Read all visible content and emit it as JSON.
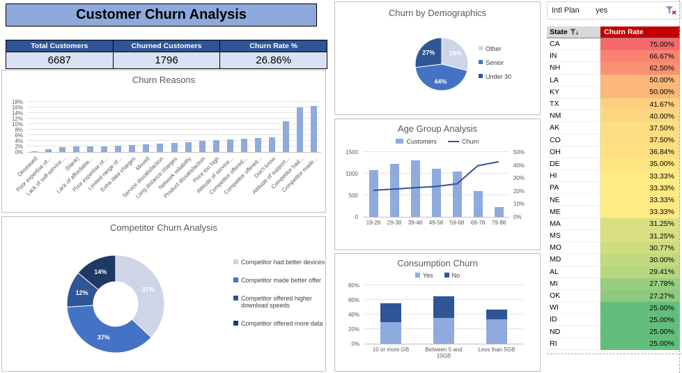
{
  "title": "Customer Churn Analysis",
  "kpis": [
    {
      "label": "Total Customers",
      "value": "6687"
    },
    {
      "label": "Churned Customers",
      "value": "1796"
    },
    {
      "label": "Churn Rate %",
      "value": "26.86%"
    }
  ],
  "slicer": {
    "label": "Intl Plan",
    "value": "yes",
    "clear_filter_icon": "funnel-x-icon"
  },
  "theme": {
    "title_bg": "#8EA9DB",
    "kpi_header_bg": "#2F5597",
    "kpi_value_bg": "#D9E1F2",
    "rate_header_bg": "#C00000",
    "rate_header_fg": "#FFFFFF"
  },
  "chart_data": [
    {
      "id": "churn_reasons",
      "type": "bar",
      "title": "Churn Reasons",
      "categories": [
        "Deceased",
        "Poor expertise of...",
        "Lack of self-service...",
        "(blank)",
        "Lack of affordable...",
        "Poor expertise of...",
        "Limited range of...",
        "Extra data charges",
        "Moved",
        "Service dissatisfaction",
        "Long distance charges",
        "Network reliability",
        "Product dissatisfaction",
        "Price too high",
        "Attitude of service...",
        "Competitor offered...",
        "Competitor offered...",
        "Don't know",
        "Attitude of support...",
        "Competitor had...",
        "Competitor made..."
      ],
      "values": [
        0.3,
        1.0,
        1.8,
        1.9,
        2.0,
        2.0,
        2.2,
        2.4,
        2.7,
        3.0,
        3.3,
        3.6,
        3.9,
        4.2,
        4.5,
        4.7,
        5.0,
        5.3,
        11.0,
        16.0,
        16.4
      ],
      "ylim": [
        0,
        18
      ],
      "yticks": [
        "0%",
        "2%",
        "4%",
        "6%",
        "8%",
        "10%",
        "12%",
        "14%",
        "16%",
        "18%"
      ],
      "bar_color": "#8FAADC",
      "grid": true,
      "legend_position": "none"
    },
    {
      "id": "competitor",
      "type": "pie",
      "donut": true,
      "title": "Competitor Churn Analysis",
      "labels": [
        "Competitor had better devices",
        "Competitor made better offer",
        "Competitor offered higher download speeds",
        "Competitor offered more data"
      ],
      "values": [
        37,
        37,
        12,
        14
      ],
      "value_labels": [
        "37%",
        "37%",
        "12%",
        "14%"
      ],
      "colors": [
        "#CDD5E7",
        "#4472C4",
        "#2F5597",
        "#1F3864"
      ],
      "legend_position": "right"
    },
    {
      "id": "demographics",
      "type": "pie",
      "donut": false,
      "title": "Churn by Demographics",
      "labels": [
        "Other",
        "Senior",
        "Under 30"
      ],
      "values": [
        29,
        44,
        27
      ],
      "value_labels": [
        "29%",
        "44%",
        "27%"
      ],
      "colors": [
        "#CDD5E7",
        "#4472C4",
        "#2F5597"
      ],
      "legend_position": "right"
    },
    {
      "id": "age_group",
      "type": "combo",
      "title": "Age Group Analysis",
      "categories": [
        "19-28",
        "29-38",
        "39-48",
        "49-58",
        "59-68",
        "69-78",
        "79-88"
      ],
      "series": [
        {
          "name": "Customers",
          "type": "bar",
          "axis": "left",
          "values": [
            1080,
            1230,
            1310,
            1120,
            1050,
            600,
            230
          ],
          "color": "#8FAADC"
        },
        {
          "name": "Churn",
          "type": "line",
          "axis": "right",
          "values": [
            21,
            22,
            23,
            24,
            26,
            40,
            43
          ],
          "color": "#2F5597"
        }
      ],
      "left_ylim": [
        0,
        1500
      ],
      "left_yticks": [
        "0",
        "500",
        "1000",
        "1500"
      ],
      "right_ylim": [
        0,
        50
      ],
      "right_yticks": [
        "0%",
        "10%",
        "20%",
        "30%",
        "40%",
        "50%"
      ],
      "grid": true,
      "legend_position": "top"
    },
    {
      "id": "consumption",
      "type": "bar",
      "stacked": true,
      "title": "Consumption Churn",
      "categories": [
        "10 or more GB",
        "Between 5 and 10GB",
        "Less than 5GB"
      ],
      "series": [
        {
          "name": "Yes",
          "values": [
            30,
            35,
            33
          ],
          "color": "#8FAADC"
        },
        {
          "name": "No",
          "values": [
            25,
            30,
            14
          ],
          "color": "#2F5597"
        }
      ],
      "ylim": [
        0,
        80
      ],
      "yticks": [
        "0%",
        "20%",
        "40%",
        "60%",
        "80%"
      ],
      "grid": true,
      "legend_position": "top"
    }
  ],
  "state_table": {
    "columns": [
      "State",
      "Churn Rate"
    ],
    "filter_icon": "funnel-sort-icon",
    "rows": [
      {
        "state": "CA",
        "rate": "75.00%",
        "color": "#F8696B"
      },
      {
        "state": "IN",
        "rate": "66.67%",
        "color": "#F98370"
      },
      {
        "state": "NH",
        "rate": "62.50%",
        "color": "#FA9072"
      },
      {
        "state": "LA",
        "rate": "50.00%",
        "color": "#FCB77A"
      },
      {
        "state": "KY",
        "rate": "50.00%",
        "color": "#FCB77A"
      },
      {
        "state": "TX",
        "rate": "41.67%",
        "color": "#FED17F"
      },
      {
        "state": "NM",
        "rate": "40.00%",
        "color": "#FED680"
      },
      {
        "state": "AK",
        "rate": "37.50%",
        "color": "#FEDE82"
      },
      {
        "state": "CO",
        "rate": "37.50%",
        "color": "#FEDE82"
      },
      {
        "state": "OH",
        "rate": "36.84%",
        "color": "#FEE082"
      },
      {
        "state": "DE",
        "rate": "35.00%",
        "color": "#FFE683"
      },
      {
        "state": "HI",
        "rate": "33.33%",
        "color": "#FFEB84"
      },
      {
        "state": "PA",
        "rate": "33.33%",
        "color": "#FFEB84"
      },
      {
        "state": "NE",
        "rate": "33.33%",
        "color": "#FFEB84"
      },
      {
        "state": "ME",
        "rate": "33.33%",
        "color": "#FFEB84"
      },
      {
        "state": "MA",
        "rate": "31.25%",
        "color": "#D8E082"
      },
      {
        "state": "MS",
        "rate": "31.25%",
        "color": "#D8E082"
      },
      {
        "state": "MO",
        "rate": "30.77%",
        "color": "#CFDD81"
      },
      {
        "state": "MD",
        "rate": "30.00%",
        "color": "#C1D980"
      },
      {
        "state": "AL",
        "rate": "29.41%",
        "color": "#B6D680"
      },
      {
        "state": "MI",
        "rate": "27.78%",
        "color": "#97CD7E"
      },
      {
        "state": "OK",
        "rate": "27.27%",
        "color": "#8ECA7E"
      },
      {
        "state": "WI",
        "rate": "25.00%",
        "color": "#63BE7B"
      },
      {
        "state": "ID",
        "rate": "25.00%",
        "color": "#63BE7B"
      },
      {
        "state": "ND",
        "rate": "25.00%",
        "color": "#63BE7B"
      },
      {
        "state": "RI",
        "rate": "25.00%",
        "color": "#63BE7B"
      }
    ]
  }
}
